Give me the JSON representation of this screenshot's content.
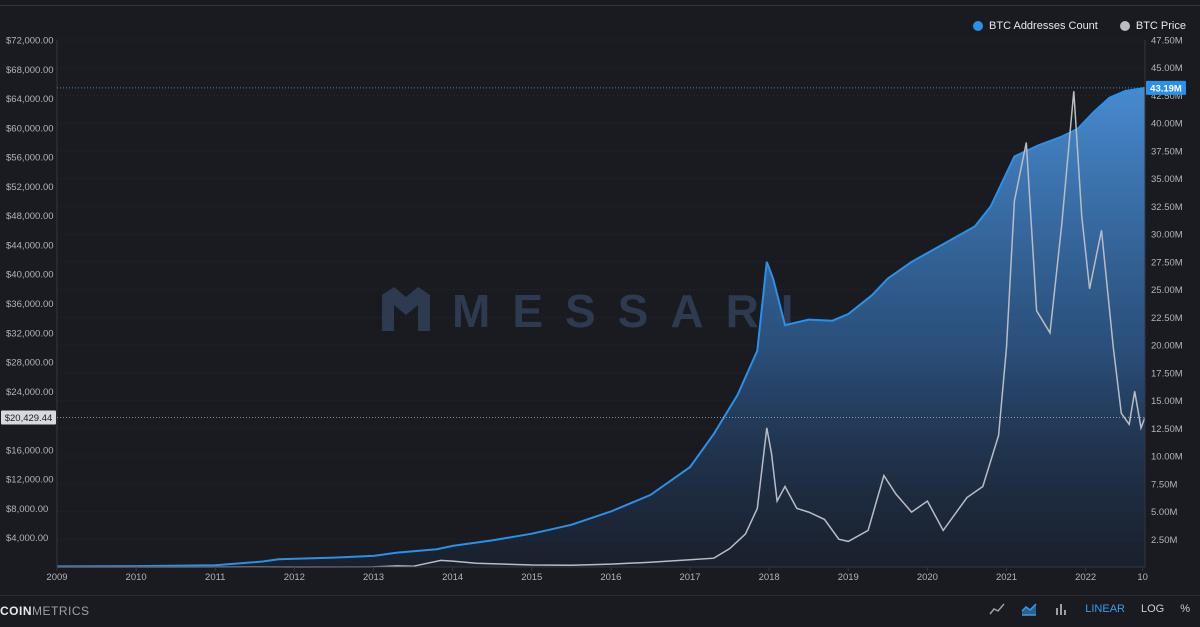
{
  "legend": [
    {
      "label": "BTC Addresses Count",
      "color": "#2d8fe6"
    },
    {
      "label": "BTC Price",
      "color": "#b9bcc4"
    }
  ],
  "watermark": "MESSARI",
  "footer": {
    "brand_bold": "COIN",
    "brand_rest": "METRICS",
    "scale_options": [
      {
        "label": "LINEAR",
        "active": true
      },
      {
        "label": "LOG",
        "active": false
      },
      {
        "label": "%",
        "active": false
      }
    ],
    "icons": [
      "line-chart-icon",
      "area-chart-icon",
      "bar-chart-icon"
    ]
  },
  "chart_data": {
    "type": "area",
    "x_ticks": [
      "2009",
      "2010",
      "2011",
      "2012",
      "2013",
      "2014",
      "2015",
      "2016",
      "2017",
      "2018",
      "2019",
      "2020",
      "2021",
      "2022",
      "10"
    ],
    "left_axis": {
      "ticks": [
        "$4,000.00",
        "$8,000.00",
        "$12,000.00",
        "$16,000.00",
        "$24,000.00",
        "$28,000.00",
        "$32,000.00",
        "$36,000.00",
        "$40,000.00",
        "$44,000.00",
        "$48,000.00",
        "$52,000.00",
        "$56,000.00",
        "$60,000.00",
        "$64,000.00",
        "$68,000.00",
        "$72,000.00"
      ],
      "range": [
        0,
        72000
      ],
      "current_label": "$20,429.44",
      "current_value": 20429.44
    },
    "right_axis": {
      "ticks": [
        "2.50M",
        "5.00M",
        "7.50M",
        "10.00M",
        "12.50M",
        "15.00M",
        "17.50M",
        "20.00M",
        "22.50M",
        "25.00M",
        "27.50M",
        "30.00M",
        "32.50M",
        "35.00M",
        "37.50M",
        "40.00M",
        "42.50M",
        "45.00M",
        "47.50M"
      ],
      "range": [
        0,
        47500000
      ],
      "current_label": "43.19M",
      "current_value": 43190000
    },
    "series": [
      {
        "name": "BTC Addresses Count",
        "axis": "right",
        "color": "#2d8fe6",
        "points": [
          [
            2009.0,
            0.05
          ],
          [
            2010.0,
            0.08
          ],
          [
            2011.0,
            0.15
          ],
          [
            2011.6,
            0.5
          ],
          [
            2011.8,
            0.7
          ],
          [
            2012.5,
            0.85
          ],
          [
            2013.0,
            1.0
          ],
          [
            2013.3,
            1.3
          ],
          [
            2013.8,
            1.6
          ],
          [
            2014.0,
            1.9
          ],
          [
            2014.5,
            2.4
          ],
          [
            2015.0,
            3.0
          ],
          [
            2015.5,
            3.8
          ],
          [
            2016.0,
            5.0
          ],
          [
            2016.5,
            6.5
          ],
          [
            2017.0,
            9.0
          ],
          [
            2017.3,
            12.0
          ],
          [
            2017.6,
            15.5
          ],
          [
            2017.85,
            19.5
          ],
          [
            2017.97,
            27.5
          ],
          [
            2018.05,
            26.0
          ],
          [
            2018.2,
            21.8
          ],
          [
            2018.5,
            22.3
          ],
          [
            2018.8,
            22.2
          ],
          [
            2019.0,
            22.8
          ],
          [
            2019.3,
            24.5
          ],
          [
            2019.5,
            26.0
          ],
          [
            2019.8,
            27.5
          ],
          [
            2020.0,
            28.3
          ],
          [
            2020.3,
            29.5
          ],
          [
            2020.6,
            30.7
          ],
          [
            2020.8,
            32.5
          ],
          [
            2021.0,
            35.5
          ],
          [
            2021.1,
            37.0
          ],
          [
            2021.4,
            38.0
          ],
          [
            2021.7,
            38.8
          ],
          [
            2021.9,
            39.5
          ],
          [
            2022.1,
            41.0
          ],
          [
            2022.3,
            42.3
          ],
          [
            2022.5,
            42.9
          ],
          [
            2022.75,
            43.19
          ]
        ]
      },
      {
        "name": "BTC Price",
        "axis": "left",
        "color": "#b9bcc4",
        "points": [
          [
            2009.0,
            0
          ],
          [
            2010.6,
            0
          ],
          [
            2011.5,
            15
          ],
          [
            2012.0,
            5
          ],
          [
            2013.0,
            13
          ],
          [
            2013.3,
            150
          ],
          [
            2013.5,
            100
          ],
          [
            2013.85,
            900
          ],
          [
            2014.0,
            800
          ],
          [
            2014.3,
            500
          ],
          [
            2015.0,
            280
          ],
          [
            2015.5,
            250
          ],
          [
            2016.0,
            400
          ],
          [
            2016.5,
            650
          ],
          [
            2017.0,
            1000
          ],
          [
            2017.3,
            1200
          ],
          [
            2017.5,
            2500
          ],
          [
            2017.7,
            4500
          ],
          [
            2017.85,
            8000
          ],
          [
            2017.97,
            19000
          ],
          [
            2018.03,
            15500
          ],
          [
            2018.1,
            9000
          ],
          [
            2018.2,
            11000
          ],
          [
            2018.35,
            8000
          ],
          [
            2018.5,
            7500
          ],
          [
            2018.7,
            6500
          ],
          [
            2018.88,
            3800
          ],
          [
            2019.0,
            3500
          ],
          [
            2019.25,
            5000
          ],
          [
            2019.45,
            12500
          ],
          [
            2019.6,
            10000
          ],
          [
            2019.8,
            7500
          ],
          [
            2020.0,
            9000
          ],
          [
            2020.2,
            5000
          ],
          [
            2020.5,
            9500
          ],
          [
            2020.7,
            11000
          ],
          [
            2020.9,
            18000
          ],
          [
            2021.0,
            30000
          ],
          [
            2021.1,
            50000
          ],
          [
            2021.25,
            58000
          ],
          [
            2021.38,
            35000
          ],
          [
            2021.55,
            32000
          ],
          [
            2021.7,
            47000
          ],
          [
            2021.85,
            65000
          ],
          [
            2021.95,
            48000
          ],
          [
            2022.05,
            38000
          ],
          [
            2022.2,
            46000
          ],
          [
            2022.35,
            30000
          ],
          [
            2022.45,
            21000
          ],
          [
            2022.55,
            19500
          ],
          [
            2022.62,
            24000
          ],
          [
            2022.7,
            19000
          ],
          [
            2022.75,
            20429.44
          ]
        ]
      }
    ]
  }
}
